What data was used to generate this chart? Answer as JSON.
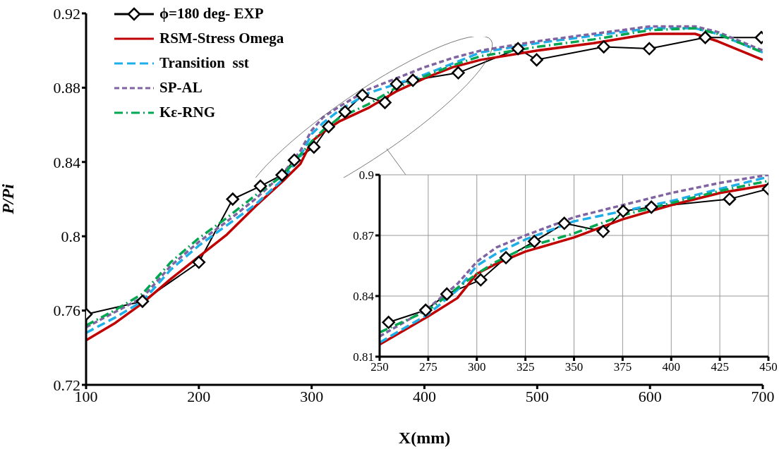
{
  "chart_data": [
    {
      "type": "line",
      "xlabel": "X(mm)",
      "ylabel": "P/Pi",
      "xlim": [
        100,
        700
      ],
      "xticks": [
        100,
        200,
        300,
        400,
        500,
        600,
        700
      ],
      "ylim": [
        0.72,
        0.92
      ],
      "yticks": [
        0.72,
        0.76,
        0.8,
        0.84,
        0.88,
        0.92
      ],
      "grid": false,
      "legend": "top left",
      "series": [
        {
          "name": "ϕ=180 deg- EXP",
          "color": "#000000",
          "marker": "diamond",
          "line_style": "solid",
          "x": [
            100,
            150,
            200,
            230,
            254.6,
            273.7,
            284.6,
            302,
            315,
            329.6,
            345,
            365,
            375.3,
            389.8,
            430,
            483,
            499.5,
            559,
            599.4,
            649,
            698.7
          ],
          "values": [
            0.758,
            0.765,
            0.786,
            0.82,
            0.827,
            0.833,
            0.841,
            0.848,
            0.859,
            0.867,
            0.876,
            0.872,
            0.882,
            0.884,
            0.888,
            0.901,
            0.895,
            0.902,
            0.901,
            0.907,
            0.907
          ]
        },
        {
          "name": "RSM-Stress Omega",
          "color": "#c00000",
          "marker": "none",
          "line_style": "solid",
          "x": [
            100,
            125,
            150,
            175,
            200,
            225,
            250,
            275,
            290,
            300,
            310,
            325,
            350,
            375,
            400,
            425,
            450,
            500,
            550,
            600,
            640,
            660,
            700
          ],
          "values": [
            0.744,
            0.753,
            0.764,
            0.777,
            0.789,
            0.801,
            0.816,
            0.83,
            0.839,
            0.851,
            0.856,
            0.862,
            0.869,
            0.878,
            0.885,
            0.891,
            0.895,
            0.9,
            0.904,
            0.909,
            0.909,
            0.905,
            0.895
          ]
        },
        {
          "name": "Transition  sst",
          "color": "#1eaee8",
          "marker": "none",
          "line_style": "dashed",
          "x": [
            100,
            125,
            150,
            175,
            200,
            225,
            250,
            275,
            290,
            300,
            310,
            325,
            350,
            375,
            400,
            425,
            450,
            500,
            550,
            600,
            640,
            660,
            700
          ],
          "values": [
            0.748,
            0.756,
            0.765,
            0.782,
            0.795,
            0.806,
            0.817,
            0.831,
            0.843,
            0.855,
            0.861,
            0.868,
            0.877,
            0.882,
            0.887,
            0.893,
            0.899,
            0.904,
            0.908,
            0.912,
            0.912,
            0.909,
            0.899
          ]
        },
        {
          "name": "SP-AL",
          "color": "#8064a2",
          "marker": "none",
          "line_style": "dotted",
          "x": [
            100,
            125,
            150,
            175,
            200,
            225,
            250,
            275,
            290,
            300,
            310,
            325,
            350,
            375,
            400,
            425,
            450,
            500,
            550,
            600,
            640,
            660,
            700
          ],
          "values": [
            0.751,
            0.759,
            0.767,
            0.784,
            0.797,
            0.808,
            0.82,
            0.834,
            0.846,
            0.857,
            0.864,
            0.87,
            0.879,
            0.885,
            0.891,
            0.896,
            0.9,
            0.905,
            0.909,
            0.913,
            0.913,
            0.91,
            0.9
          ]
        },
        {
          "name": "Kε-RNG",
          "color": "#00a650",
          "marker": "none",
          "line_style": "dashdot",
          "x": [
            100,
            125,
            150,
            175,
            200,
            225,
            250,
            275,
            290,
            300,
            310,
            325,
            350,
            375,
            400,
            425,
            450,
            500,
            550,
            600,
            640,
            660,
            700
          ],
          "values": [
            0.752,
            0.76,
            0.769,
            0.786,
            0.799,
            0.81,
            0.822,
            0.833,
            0.844,
            0.851,
            0.857,
            0.864,
            0.871,
            0.88,
            0.886,
            0.892,
            0.897,
            0.902,
            0.906,
            0.911,
            0.912,
            0.909,
            0.899
          ]
        }
      ]
    },
    {
      "type": "line",
      "xlim": [
        250,
        450
      ],
      "xticks": [
        250,
        275,
        300,
        325,
        350,
        375,
        400,
        425,
        450
      ],
      "ylim": [
        0.81,
        0.9
      ],
      "yticks": [
        0.81,
        0.84,
        0.87,
        0.9
      ],
      "grid": true,
      "series": [
        {
          "color": "#000000",
          "marker": "diamond",
          "line_style": "solid",
          "x": [
            254.6,
            273.7,
            284.6,
            302,
            315,
            329.6,
            345,
            365,
            375.3,
            389.8,
            430,
            450
          ],
          "values": [
            0.827,
            0.833,
            0.841,
            0.848,
            0.859,
            0.867,
            0.876,
            0.872,
            0.882,
            0.884,
            0.888,
            0.893
          ]
        },
        {
          "color": "#c00000",
          "marker": "none",
          "line_style": "solid",
          "x": [
            250,
            275,
            290,
            300,
            310,
            325,
            350,
            375,
            400,
            425,
            450
          ],
          "values": [
            0.816,
            0.83,
            0.839,
            0.851,
            0.856,
            0.862,
            0.869,
            0.878,
            0.885,
            0.891,
            0.895
          ]
        },
        {
          "color": "#1eaee8",
          "marker": "none",
          "line_style": "dashed",
          "x": [
            250,
            275,
            290,
            300,
            310,
            325,
            350,
            375,
            400,
            425,
            450
          ],
          "values": [
            0.817,
            0.831,
            0.843,
            0.855,
            0.861,
            0.868,
            0.877,
            0.882,
            0.887,
            0.893,
            0.899
          ]
        },
        {
          "color": "#8064a2",
          "marker": "none",
          "line_style": "dotted",
          "x": [
            250,
            275,
            290,
            300,
            310,
            325,
            350,
            375,
            400,
            425,
            450
          ],
          "values": [
            0.82,
            0.834,
            0.846,
            0.857,
            0.864,
            0.87,
            0.879,
            0.885,
            0.891,
            0.896,
            0.9
          ]
        },
        {
          "color": "#00a650",
          "marker": "none",
          "line_style": "dashdot",
          "x": [
            250,
            275,
            290,
            300,
            310,
            325,
            350,
            375,
            400,
            425,
            450
          ],
          "values": [
            0.822,
            0.833,
            0.844,
            0.851,
            0.857,
            0.864,
            0.871,
            0.88,
            0.886,
            0.892,
            0.897
          ]
        }
      ]
    }
  ]
}
